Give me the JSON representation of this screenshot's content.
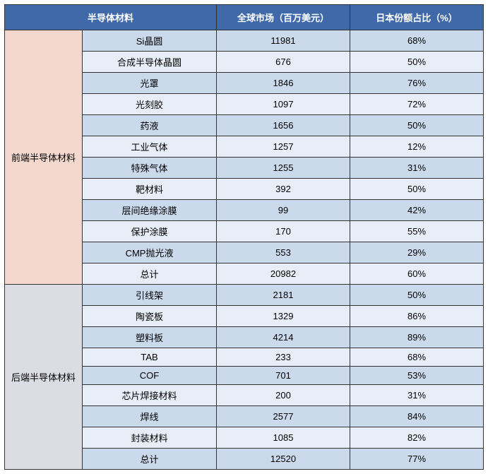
{
  "table": {
    "type": "table",
    "header_bg": "#3f69a8",
    "header_color": "#ffffff",
    "row_bg_even": "#cbd9ed",
    "row_bg_odd": "#e8eef7",
    "group1_bg": "#f3d8cd",
    "group2_bg": "#dcdde4",
    "border_color": "#333333",
    "font_size": 13,
    "columns": [
      {
        "key": "group",
        "label": "半导体材料",
        "colspan": 2
      },
      {
        "key": "market",
        "label": "全球市场（百万美元）"
      },
      {
        "key": "share",
        "label": "日本份额占比（%）"
      }
    ],
    "groups": [
      {
        "label": "前端半导体材料",
        "bg_class": "group-1",
        "rows": [
          {
            "name": "Si晶圆",
            "market": "11981",
            "share": "68%"
          },
          {
            "name": "合成半导体晶圆",
            "market": "676",
            "share": "50%"
          },
          {
            "name": "光罩",
            "market": "1846",
            "share": "76%"
          },
          {
            "name": "光刻胶",
            "market": "1097",
            "share": "72%"
          },
          {
            "name": "药液",
            "market": "1656",
            "share": "50%"
          },
          {
            "name": "工业气体",
            "market": "1257",
            "share": "12%"
          },
          {
            "name": "特殊气体",
            "market": "1255",
            "share": "31%"
          },
          {
            "name": "靶材料",
            "market": "392",
            "share": "50%"
          },
          {
            "name": "层间绝缘涂膜",
            "market": "99",
            "share": "42%"
          },
          {
            "name": "保护涂膜",
            "market": "170",
            "share": "55%"
          },
          {
            "name": "CMP抛光液",
            "market": "553",
            "share": "29%"
          },
          {
            "name": "总计",
            "market": "20982",
            "share": "60%"
          }
        ]
      },
      {
        "label": "后端半导体材料",
        "bg_class": "group-2",
        "rows": [
          {
            "name": "引线架",
            "market": "2181",
            "share": "50%"
          },
          {
            "name": "陶瓷板",
            "market": "1329",
            "share": "86%"
          },
          {
            "name": "塑料板",
            "market": "4214",
            "share": "89%"
          },
          {
            "name": "TAB",
            "market": "233",
            "share": "68%"
          },
          {
            "name": "COF",
            "market": "701",
            "share": "53%"
          },
          {
            "name": "芯片焊接材料",
            "market": "200",
            "share": "31%"
          },
          {
            "name": "焊线",
            "market": "2577",
            "share": "84%"
          },
          {
            "name": "封装材料",
            "market": "1085",
            "share": "82%"
          },
          {
            "name": "总计",
            "market": "12520",
            "share": "77%"
          }
        ]
      }
    ]
  }
}
